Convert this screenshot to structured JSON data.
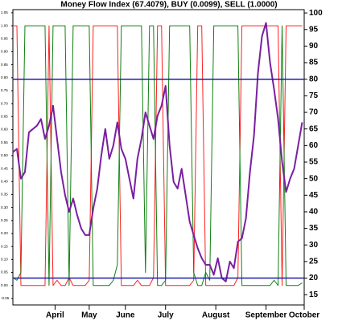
{
  "chart_data": {
    "type": "line",
    "title": "Money Flow Index (67.4079), BUY (0.0099), SELL (1.0000)",
    "x": [
      0,
      2,
      4,
      6,
      8,
      10,
      12,
      14,
      16,
      18,
      20,
      22,
      24,
      26,
      28,
      30,
      32,
      34,
      36,
      38,
      40,
      42,
      44,
      46,
      48,
      50,
      52,
      54,
      56,
      58,
      60,
      62,
      64,
      66,
      68,
      70,
      72,
      74,
      76,
      78,
      80,
      82,
      84,
      86,
      88,
      90,
      92,
      94,
      96,
      98,
      100,
      102,
      104,
      106,
      108,
      110,
      112,
      114,
      116,
      118,
      120,
      122,
      124,
      126,
      128,
      130,
      132,
      134,
      136,
      138,
      140,
      142,
      144
    ],
    "xlim": [
      0,
      145
    ],
    "xticks": [
      {
        "value": 21,
        "label": "April"
      },
      {
        "value": 38,
        "label": "May"
      },
      {
        "value": 56,
        "label": "June"
      },
      {
        "value": 76,
        "label": "July"
      },
      {
        "value": 101,
        "label": "August"
      },
      {
        "value": 126,
        "label": "September"
      },
      {
        "value": 145,
        "label": "October"
      }
    ],
    "ylim": [
      11.9,
      101
    ],
    "yticks": [
      15,
      20,
      25,
      30,
      35,
      40,
      45,
      50,
      55,
      60,
      65,
      70,
      75,
      80,
      85,
      90,
      95,
      100
    ],
    "y2lim": [
      -0.075,
      1.062
    ],
    "y2ticks": [
      {
        "value": -0.05,
        "label": "-0.05"
      },
      {
        "value": 0,
        "label": "0.00"
      },
      {
        "value": 0.05,
        "label": "0.05"
      },
      {
        "value": 0.1,
        "label": "0.10"
      },
      {
        "value": 0.15,
        "label": "0.15"
      },
      {
        "value": 0.2,
        "label": "0.20"
      },
      {
        "value": 0.25,
        "label": "0.25"
      },
      {
        "value": 0.3,
        "label": "0.30"
      },
      {
        "value": 0.35,
        "label": "0.35"
      },
      {
        "value": 0.4,
        "label": "0.40"
      },
      {
        "value": 0.45,
        "label": "0.45"
      },
      {
        "value": 0.5,
        "label": "0.50"
      },
      {
        "value": 0.55,
        "label": "0.55"
      },
      {
        "value": 0.6,
        "label": "0.60"
      },
      {
        "value": 0.65,
        "label": "0.65"
      },
      {
        "value": 0.7,
        "label": "0.70"
      },
      {
        "value": 0.75,
        "label": "0.75"
      },
      {
        "value": 0.8,
        "label": "0.80"
      },
      {
        "value": 0.85,
        "label": "0.85"
      },
      {
        "value": 0.9,
        "label": "0.90"
      },
      {
        "value": 0.95,
        "label": "0.95"
      },
      {
        "value": 1,
        "label": "1.00"
      },
      {
        "value": 1.05,
        "label": "1.05"
      }
    ],
    "hlines": [
      {
        "value": 80,
        "color": "#1c1ca8"
      },
      {
        "value": 20,
        "color": "#1c1ca8"
      }
    ],
    "series": [
      {
        "color": "#ff2020",
        "axis": "y2",
        "values": [
          1,
          1,
          0,
          0,
          0,
          0,
          0,
          0,
          0,
          1,
          0,
          0.02,
          0,
          0,
          0.03,
          0,
          0,
          0,
          0,
          0.02,
          1,
          1,
          1,
          1,
          1,
          1,
          1,
          0,
          0,
          0,
          0,
          0.02,
          0,
          0,
          0,
          0.03,
          1,
          1,
          0,
          0,
          0,
          0,
          0,
          0,
          0,
          0.02,
          1,
          1,
          0,
          0,
          0,
          0,
          0,
          0,
          0,
          0,
          0.03,
          1,
          1,
          1,
          1,
          1,
          1,
          1,
          1,
          1,
          1,
          0,
          1,
          1,
          1,
          1,
          1
        ]
      },
      {
        "color": "#108010",
        "axis": "y2",
        "values": [
          0.03,
          0.02,
          0.05,
          1,
          1,
          1,
          1,
          1,
          1,
          0,
          1,
          1,
          1,
          1,
          0,
          1,
          1,
          1,
          1,
          1,
          0,
          0,
          0,
          0,
          0,
          0.02,
          0.08,
          1,
          1,
          1,
          1,
          1,
          1,
          0.05,
          1,
          1,
          0,
          0,
          0.02,
          1,
          1,
          1,
          1,
          1,
          1,
          0.05,
          0,
          0,
          0.05,
          0.02,
          1,
          1,
          1,
          1,
          1,
          1,
          1,
          0,
          0,
          0,
          0,
          0,
          0,
          0,
          0,
          0.02,
          0,
          1,
          0,
          0,
          0,
          0,
          0.01
        ]
      },
      {
        "color": "#7a1fa0",
        "values": [
          58,
          59,
          50,
          52,
          64,
          65,
          66,
          68,
          62,
          66,
          72,
          62,
          52,
          45,
          40,
          44,
          39,
          35,
          33,
          33,
          41,
          47,
          57,
          65,
          56,
          60,
          67,
          59,
          56,
          50,
          44,
          56,
          62,
          70,
          66,
          62,
          69,
          72,
          78,
          60,
          49,
          47,
          53,
          45,
          37,
          33,
          29,
          26,
          24,
          24,
          21,
          26,
          20,
          19,
          25,
          23,
          31,
          32,
          38,
          52,
          63,
          82,
          93,
          97,
          85,
          77,
          68,
          55,
          46,
          50,
          53,
          60,
          67
        ]
      }
    ]
  }
}
